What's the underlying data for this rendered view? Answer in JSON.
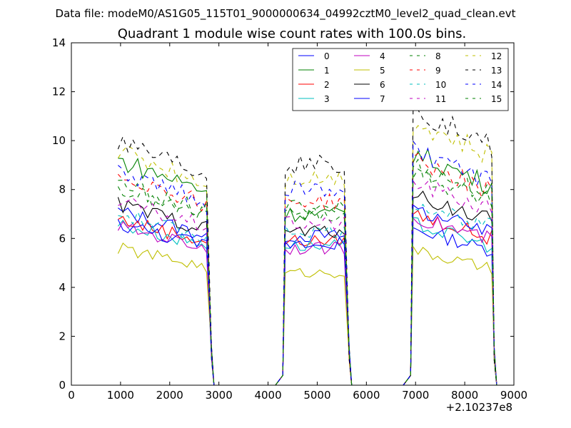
{
  "figure": {
    "suptitle": "Data file: modeM0/AS1G05_115T01_9000000634_04992cztM0_level2_quad_clean.evt"
  },
  "chart_data": {
    "type": "line",
    "title": "Quadrant 1 module wise count rates with 100.0s bins.",
    "xlabel": "",
    "ylabel": "",
    "x_offset_label": "+2.10237e8",
    "xlim": [
      0,
      9000
    ],
    "ylim": [
      0,
      14
    ],
    "xticks": [
      0,
      1000,
      2000,
      3000,
      4000,
      5000,
      6000,
      7000,
      8000,
      9000
    ],
    "yticks": [
      0,
      2,
      4,
      6,
      8,
      10,
      12,
      14
    ],
    "grid": false,
    "legend_position": "top-right",
    "legend_columns": 4,
    "segments": [
      {
        "xs": [
          950,
          2750
        ],
        "fall_x": 2850
      },
      {
        "xs": [
          4350,
          5550
        ],
        "rise_x": 4300,
        "fall_x": 5650
      },
      {
        "xs": [
          6950,
          8550
        ],
        "rise_x": 6900,
        "fall_x": 8600
      }
    ],
    "gaps": [
      [
        2950,
        4150
      ],
      [
        5750,
        6750
      ]
    ],
    "series": [
      {
        "name": "0",
        "color": "#0000ff",
        "dash": false,
        "levels": [
          7.1,
          6.1,
          6.4
        ]
      },
      {
        "name": "1",
        "color": "#008000",
        "dash": false,
        "levels": [
          9.2,
          7.0,
          9.5
        ]
      },
      {
        "name": "2",
        "color": "#ff0000",
        "dash": false,
        "levels": [
          6.8,
          5.9,
          7.0
        ]
      },
      {
        "name": "3",
        "color": "#00bfbf",
        "dash": false,
        "levels": [
          6.6,
          5.7,
          6.6
        ]
      },
      {
        "name": "4",
        "color": "#bf00bf",
        "dash": false,
        "levels": [
          6.5,
          5.6,
          6.9
        ]
      },
      {
        "name": "5",
        "color": "#bfbf00",
        "dash": false,
        "levels": [
          5.6,
          4.6,
          5.5
        ]
      },
      {
        "name": "6",
        "color": "#000000",
        "dash": false,
        "levels": [
          7.4,
          6.3,
          7.8
        ]
      },
      {
        "name": "7",
        "color": "#0000ff",
        "dash": false,
        "levels": [
          6.6,
          5.8,
          7.2
        ]
      },
      {
        "name": "8",
        "color": "#008000",
        "dash": true,
        "levels": [
          8.0,
          7.0,
          8.7
        ]
      },
      {
        "name": "9",
        "color": "#ff0000",
        "dash": true,
        "levels": [
          8.6,
          7.5,
          9.2
        ]
      },
      {
        "name": "10",
        "color": "#00bfbf",
        "dash": true,
        "levels": [
          7.0,
          6.3,
          7.5
        ]
      },
      {
        "name": "11",
        "color": "#bf00bf",
        "dash": true,
        "levels": [
          7.5,
          6.6,
          8.3
        ]
      },
      {
        "name": "12",
        "color": "#bfbf00",
        "dash": true,
        "levels": [
          9.6,
          8.5,
          10.8
        ]
      },
      {
        "name": "13",
        "color": "#000000",
        "dash": true,
        "levels": [
          10.1,
          9.0,
          11.3
        ]
      },
      {
        "name": "14",
        "color": "#0000ff",
        "dash": true,
        "levels": [
          8.7,
          8.0,
          9.6
        ]
      },
      {
        "name": "15",
        "color": "#008000",
        "dash": true,
        "levels": [
          8.2,
          7.3,
          9.0
        ]
      }
    ]
  }
}
